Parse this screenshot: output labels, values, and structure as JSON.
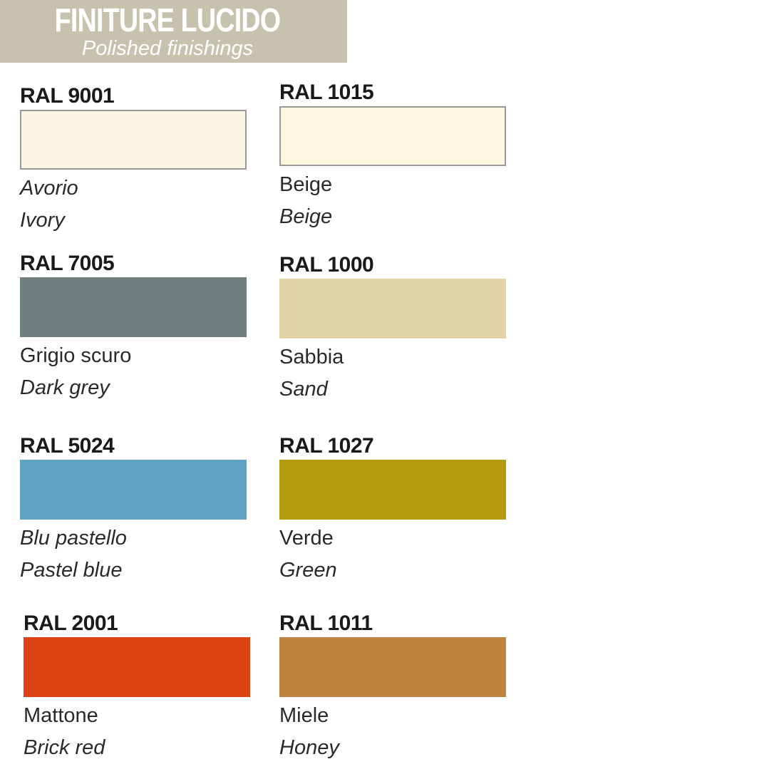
{
  "header": {
    "title": "FINITURE LUCIDO",
    "subtitle": "Polished finishings",
    "band_color": "#c7c2ad"
  },
  "colors": [
    {
      "code": "RAL 9001",
      "name_it": "Avorio",
      "name_en": "Ivory",
      "hex": "#fcf5e6",
      "it_italic": true,
      "en_italic": true,
      "bordered": true
    },
    {
      "code": "RAL 1015",
      "name_it": "Beige",
      "name_en": "Beige",
      "hex": "#fff6e0",
      "it_italic": false,
      "en_italic": true,
      "bordered": true
    },
    {
      "code": "RAL 7005",
      "name_it": "Grigio scuro",
      "name_en": "Dark grey",
      "hex": "#6f7e7e",
      "it_italic": false,
      "en_italic": true,
      "bordered": false
    },
    {
      "code": "RAL 1000",
      "name_it": "Sabbia",
      "name_en": "Sand",
      "hex": "#e2d4a5",
      "it_italic": false,
      "en_italic": true,
      "bordered": false
    },
    {
      "code": "RAL 5024",
      "name_it": "Blu pastello",
      "name_en": "Pastel blue",
      "hex": "#60a3c5",
      "it_italic": true,
      "en_italic": true,
      "bordered": false
    },
    {
      "code": "RAL 1027",
      "name_it": "Verde",
      "name_en": "Green",
      "hex": "#b39b0c",
      "it_italic": false,
      "en_italic": true,
      "bordered": false
    },
    {
      "code": "RAL 2001",
      "name_it": "Mattone",
      "name_en": "Brick red",
      "hex": "#dd4215",
      "it_italic": false,
      "en_italic": true,
      "bordered": false
    },
    {
      "code": "RAL 1011",
      "name_it": "Miele",
      "name_en": "Honey",
      "hex": "#c0823f",
      "it_italic": false,
      "en_italic": true,
      "bordered": false
    }
  ]
}
